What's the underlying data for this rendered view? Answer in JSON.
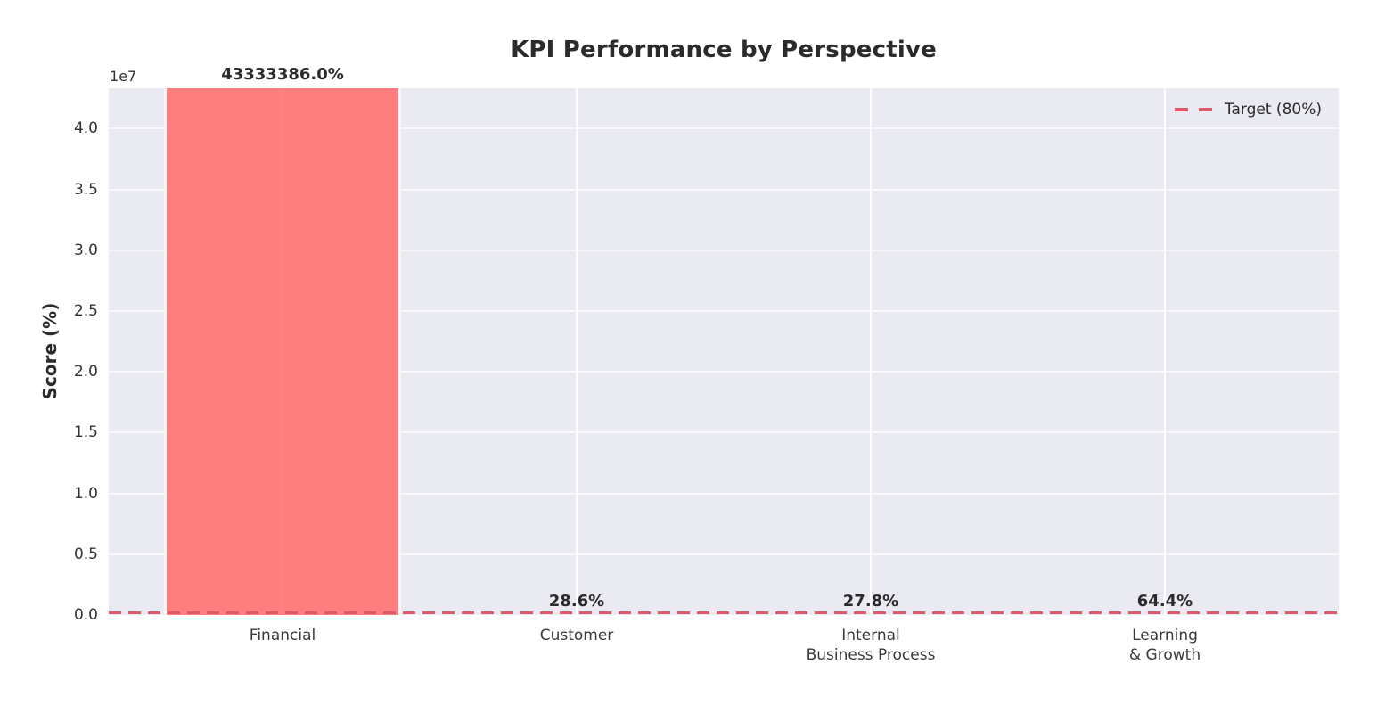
{
  "chart_data": {
    "type": "bar",
    "title": "KPI Performance by Perspective",
    "xlabel": "",
    "ylabel": "Score (%)",
    "categories": [
      "Financial",
      "Customer",
      "Internal\nBusiness Process",
      "Learning\n& Growth"
    ],
    "values": [
      43333386.0,
      28.6,
      27.8,
      64.4
    ],
    "bar_value_labels": [
      "43333386.0%",
      "28.6%",
      "27.8%",
      "64.4%"
    ],
    "ylim": [
      0,
      43333386
    ],
    "y_axis": {
      "offset_text": "1e7",
      "tick_values": [
        0,
        5000000,
        10000000,
        15000000,
        20000000,
        25000000,
        30000000,
        35000000,
        40000000
      ],
      "tick_labels": [
        "0.0",
        "0.5",
        "1.0",
        "1.5",
        "2.0",
        "2.5",
        "3.0",
        "3.5",
        "4.0"
      ]
    },
    "target_line": {
      "value": 80,
      "legend_label": "Target (80%)"
    },
    "grid": true,
    "legend_position": "upper right",
    "colors": {
      "bar_fill": "rgba(255,107,107,0.85)",
      "bar_edge": "#ffffff",
      "target_line": "#db5a68",
      "plot_background": "#eaeaf2",
      "gridline": "#ffffff",
      "text": "#262626"
    }
  }
}
